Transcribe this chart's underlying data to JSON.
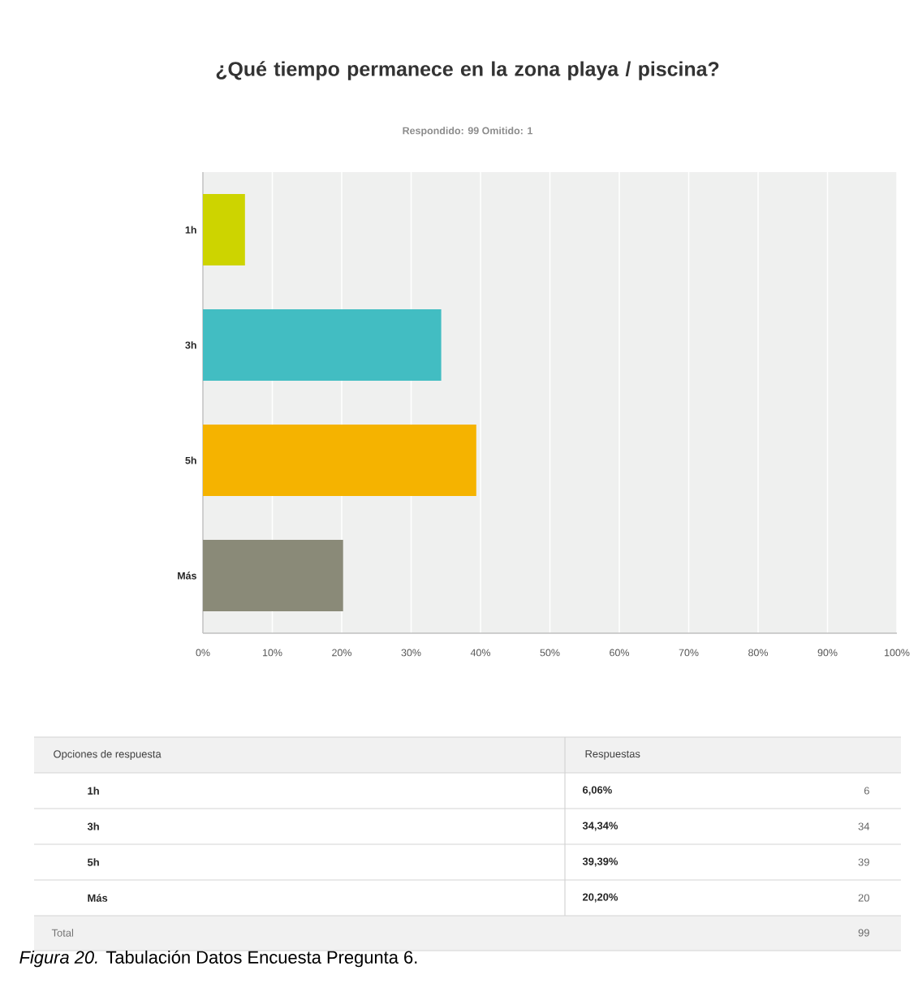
{
  "chart_data": {
    "type": "bar",
    "orientation": "horizontal",
    "title": "¿Qué tiempo permanece en la zona playa / piscina?",
    "subtitle": "Respondido: 99   Omitido: 1",
    "categories": [
      "1h",
      "3h",
      "5h",
      "Más"
    ],
    "values": [
      6.06,
      34.34,
      39.39,
      20.2
    ],
    "colors": [
      "#cdd400",
      "#42bdc2",
      "#f5b300",
      "#8a8a78"
    ],
    "xlim": [
      0,
      100
    ],
    "xticks": [
      {
        "value": 0,
        "label": "0%"
      },
      {
        "value": 10,
        "label": "10%"
      },
      {
        "value": 20,
        "label": "20%"
      },
      {
        "value": 30,
        "label": "30%"
      },
      {
        "value": 40,
        "label": "40%"
      },
      {
        "value": 50,
        "label": "50%"
      },
      {
        "value": 60,
        "label": "60%"
      },
      {
        "value": 70,
        "label": "70%"
      },
      {
        "value": 80,
        "label": "80%"
      },
      {
        "value": 90,
        "label": "90%"
      },
      {
        "value": 100,
        "label": "100%"
      }
    ],
    "grid": "x",
    "annotations": [
      "Opciones de respuesta",
      "Respuestas",
      "6,06%",
      "6",
      "34,34%",
      "34",
      "39,39%",
      "39",
      "20,20%",
      "20",
      "Total",
      "99",
      "*Figura 20.* Tabulación Datos Encuesta Pregunta 6."
    ]
  }
}
